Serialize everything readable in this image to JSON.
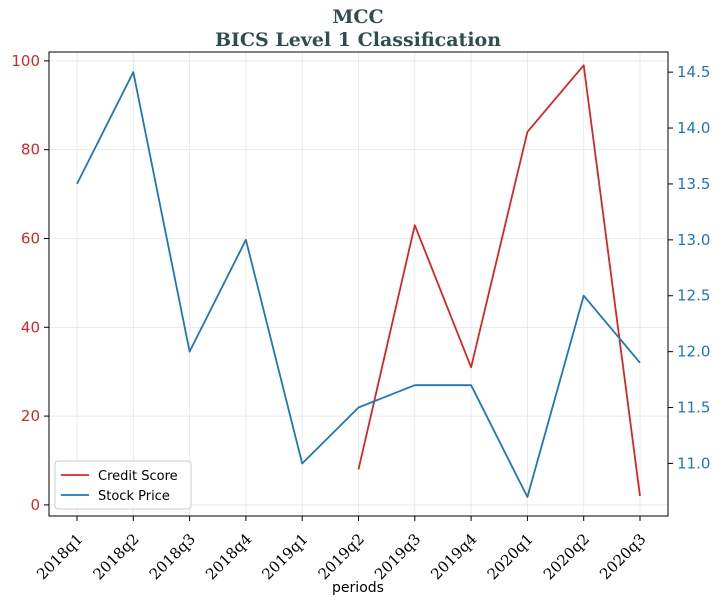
{
  "chart_data": {
    "type": "line",
    "title": "MCC",
    "subtitle": "BICS Level 1 Classification",
    "xlabel": "periods",
    "categories": [
      "2018q1",
      "2018q2",
      "2018q3",
      "2018q4",
      "2019q1",
      "2019q2",
      "2019q3",
      "2019q4",
      "2020q1",
      "2020q2",
      "2020q3"
    ],
    "left_axis": {
      "ylim": [
        -2.5,
        102
      ],
      "ticks": [
        0,
        20,
        40,
        60,
        80,
        100
      ],
      "color": "#d62728"
    },
    "right_axis": {
      "ylim": [
        10.53,
        14.68
      ],
      "ticks": [
        11.0,
        11.5,
        12.0,
        12.5,
        13.0,
        13.5,
        14.0,
        14.5
      ],
      "tick_labels": [
        "11.0",
        "11.5",
        "12.0",
        "12.5",
        "13.0",
        "13.5",
        "14.0",
        "14.5"
      ],
      "color": "#1f77b4"
    },
    "series": [
      {
        "name": "Credit Score",
        "axis": "left",
        "color": "#d62728",
        "values": [
          null,
          null,
          null,
          null,
          null,
          8,
          63,
          31,
          84,
          99,
          2
        ]
      },
      {
        "name": "Stock Price",
        "axis": "right",
        "color": "#1f77b4",
        "values": [
          13.5,
          14.5,
          12.0,
          13.0,
          11.0,
          11.5,
          11.7,
          11.7,
          10.7,
          12.5,
          11.9
        ]
      }
    ],
    "grid": true,
    "legend_position": "lower-left"
  }
}
